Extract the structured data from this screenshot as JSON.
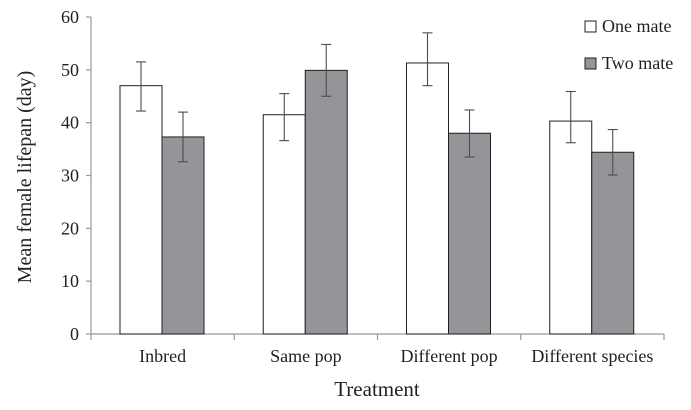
{
  "chart_data": {
    "type": "bar",
    "title": "",
    "xlabel": "Treatment",
    "ylabel": "Mean female lifepan (day)",
    "categories": [
      "Inbred",
      "Same pop",
      "Different pop",
      "Different species"
    ],
    "ylim": [
      0,
      60
    ],
    "yticks": [
      0,
      10,
      20,
      30,
      40,
      50,
      60
    ],
    "series": [
      {
        "name": "One mate",
        "values": [
          47.0,
          41.5,
          51.3,
          40.3
        ],
        "error_low": [
          42.2,
          36.6,
          47.0,
          36.2
        ],
        "error_high": [
          51.5,
          45.5,
          57.0,
          45.9
        ],
        "color": "#ffffff"
      },
      {
        "name": "Two mate",
        "values": [
          37.3,
          49.9,
          38.0,
          34.4
        ],
        "error_low": [
          32.6,
          45.0,
          33.5,
          30.1
        ],
        "error_high": [
          42.0,
          54.8,
          42.4,
          38.7
        ],
        "color": "#939598"
      }
    ],
    "legend_position": "top-right",
    "grid": false,
    "bar_outline": "#231f20",
    "axis_color": "#9a9a9a"
  }
}
